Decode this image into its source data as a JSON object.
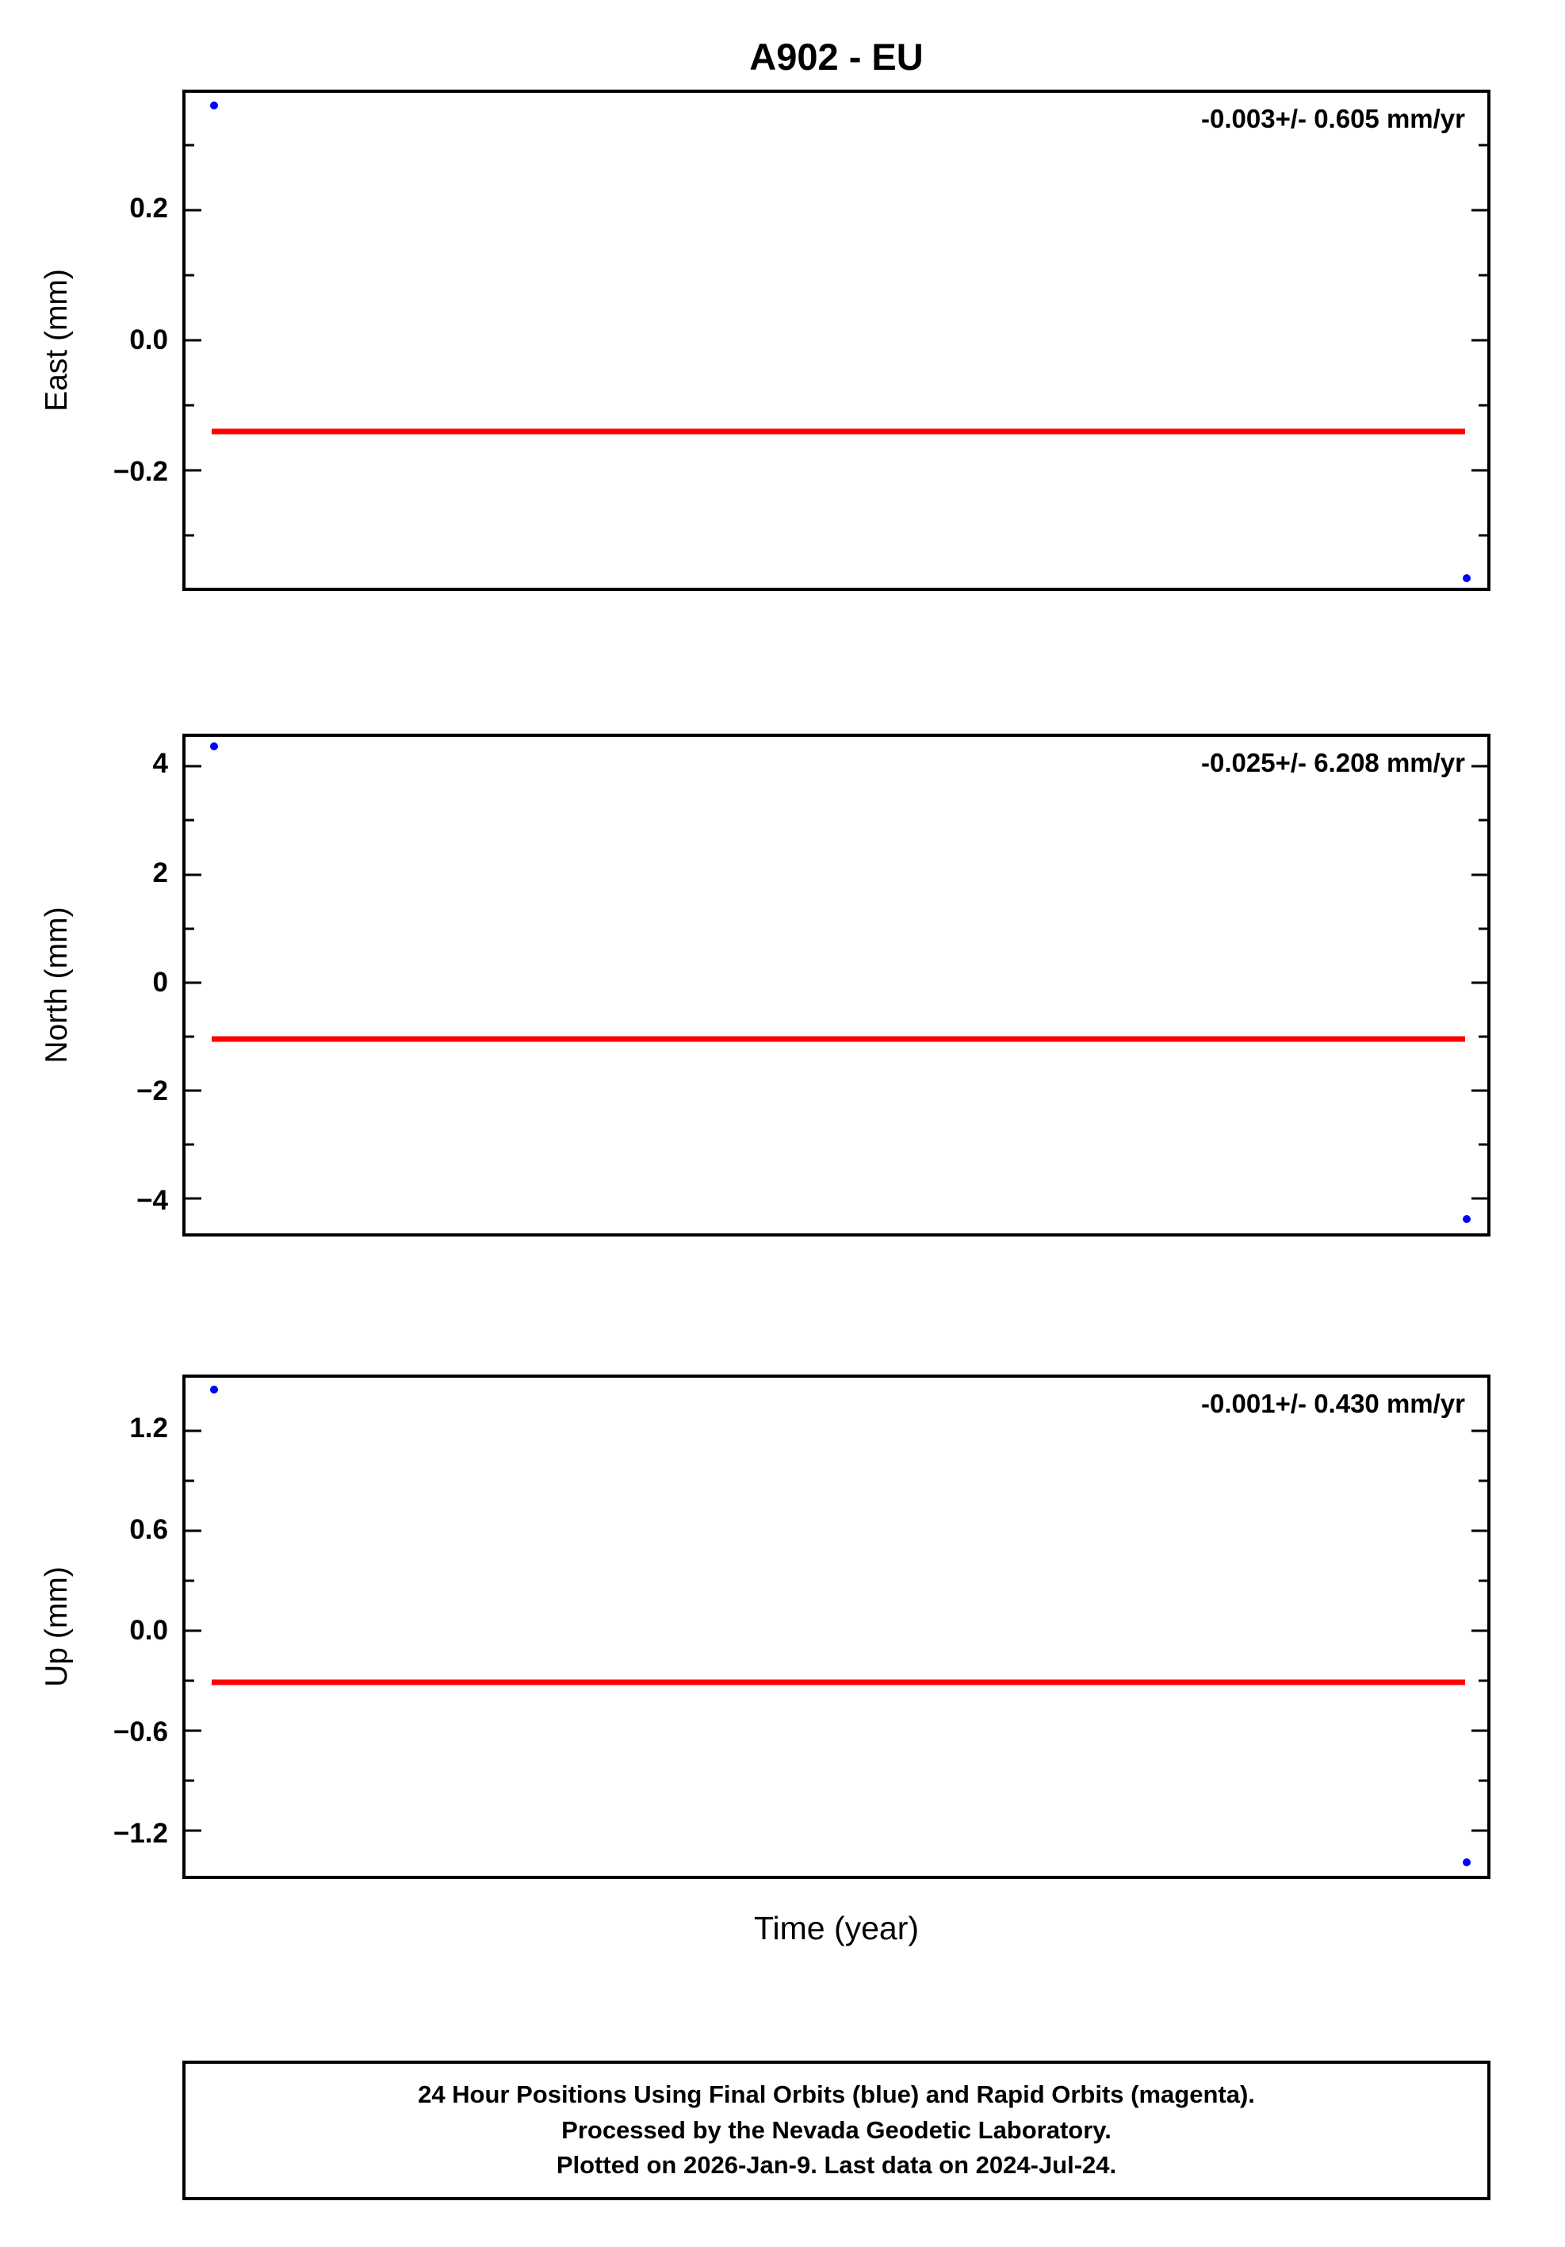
{
  "title": "A902 - EU",
  "xlabel": "Time (year)",
  "footer": {
    "line1": "24 Hour Positions Using Final Orbits (blue) and Rapid Orbits (magenta).",
    "line2": "Processed by the Nevada Geodetic Laboratory.",
    "line3": "Plotted on 2026-Jan-9. Last data on 2024-Jul-24."
  },
  "colors": {
    "point_blue": "#0000ff",
    "trend_red": "#ff0000",
    "axis_black": "#000000"
  },
  "chart_data": [
    {
      "type": "scatter",
      "panel": "east",
      "ylabel": "East (mm)",
      "annotation": "-0.003+/- 0.605 mm/yr",
      "ylim": [
        0.38,
        -0.38
      ],
      "grid": false,
      "yticks": [
        {
          "value": 0.2,
          "label": "0.2"
        },
        {
          "value": 0.0,
          "label": "0.0"
        },
        {
          "value": -0.2,
          "label": "−0.2"
        }
      ],
      "yticks_minor": [
        0.3,
        0.1,
        -0.1,
        -0.3
      ],
      "points": [
        {
          "x_frac": 0.022,
          "y": 0.36
        },
        {
          "x_frac": 0.984,
          "y": -0.365
        }
      ],
      "trend": {
        "y": -0.14,
        "x_frac": [
          0.02,
          0.983
        ]
      }
    },
    {
      "type": "scatter",
      "panel": "north",
      "ylabel": "North (mm)",
      "annotation": "-0.025+/- 6.208 mm/yr",
      "ylim": [
        4.55,
        -4.65
      ],
      "grid": false,
      "yticks": [
        {
          "value": 4,
          "label": "4"
        },
        {
          "value": 2,
          "label": "2"
        },
        {
          "value": 0,
          "label": "0"
        },
        {
          "value": -2,
          "label": "−2"
        },
        {
          "value": -4,
          "label": "−4"
        }
      ],
      "yticks_minor": [
        3,
        1,
        -1,
        -3
      ],
      "points": [
        {
          "x_frac": 0.022,
          "y": 4.37
        },
        {
          "x_frac": 0.984,
          "y": -4.39
        }
      ],
      "trend": {
        "y": -1.05,
        "x_frac": [
          0.02,
          0.983
        ]
      }
    },
    {
      "type": "scatter",
      "panel": "up",
      "ylabel": "Up (mm)",
      "annotation": "-0.001+/- 0.430 mm/yr",
      "ylim": [
        1.52,
        -1.47
      ],
      "grid": false,
      "yticks": [
        {
          "value": 1.2,
          "label": "1.2"
        },
        {
          "value": 0.6,
          "label": "0.6"
        },
        {
          "value": 0.0,
          "label": "0.0"
        },
        {
          "value": -0.6,
          "label": "−0.6"
        },
        {
          "value": -1.2,
          "label": "−1.2"
        }
      ],
      "yticks_minor": [
        0.9,
        0.3,
        -0.3,
        -0.9
      ],
      "points": [
        {
          "x_frac": 0.022,
          "y": 1.45
        },
        {
          "x_frac": 0.984,
          "y": -1.39
        }
      ],
      "trend": {
        "y": -0.31,
        "x_frac": [
          0.02,
          0.983
        ]
      }
    }
  ]
}
